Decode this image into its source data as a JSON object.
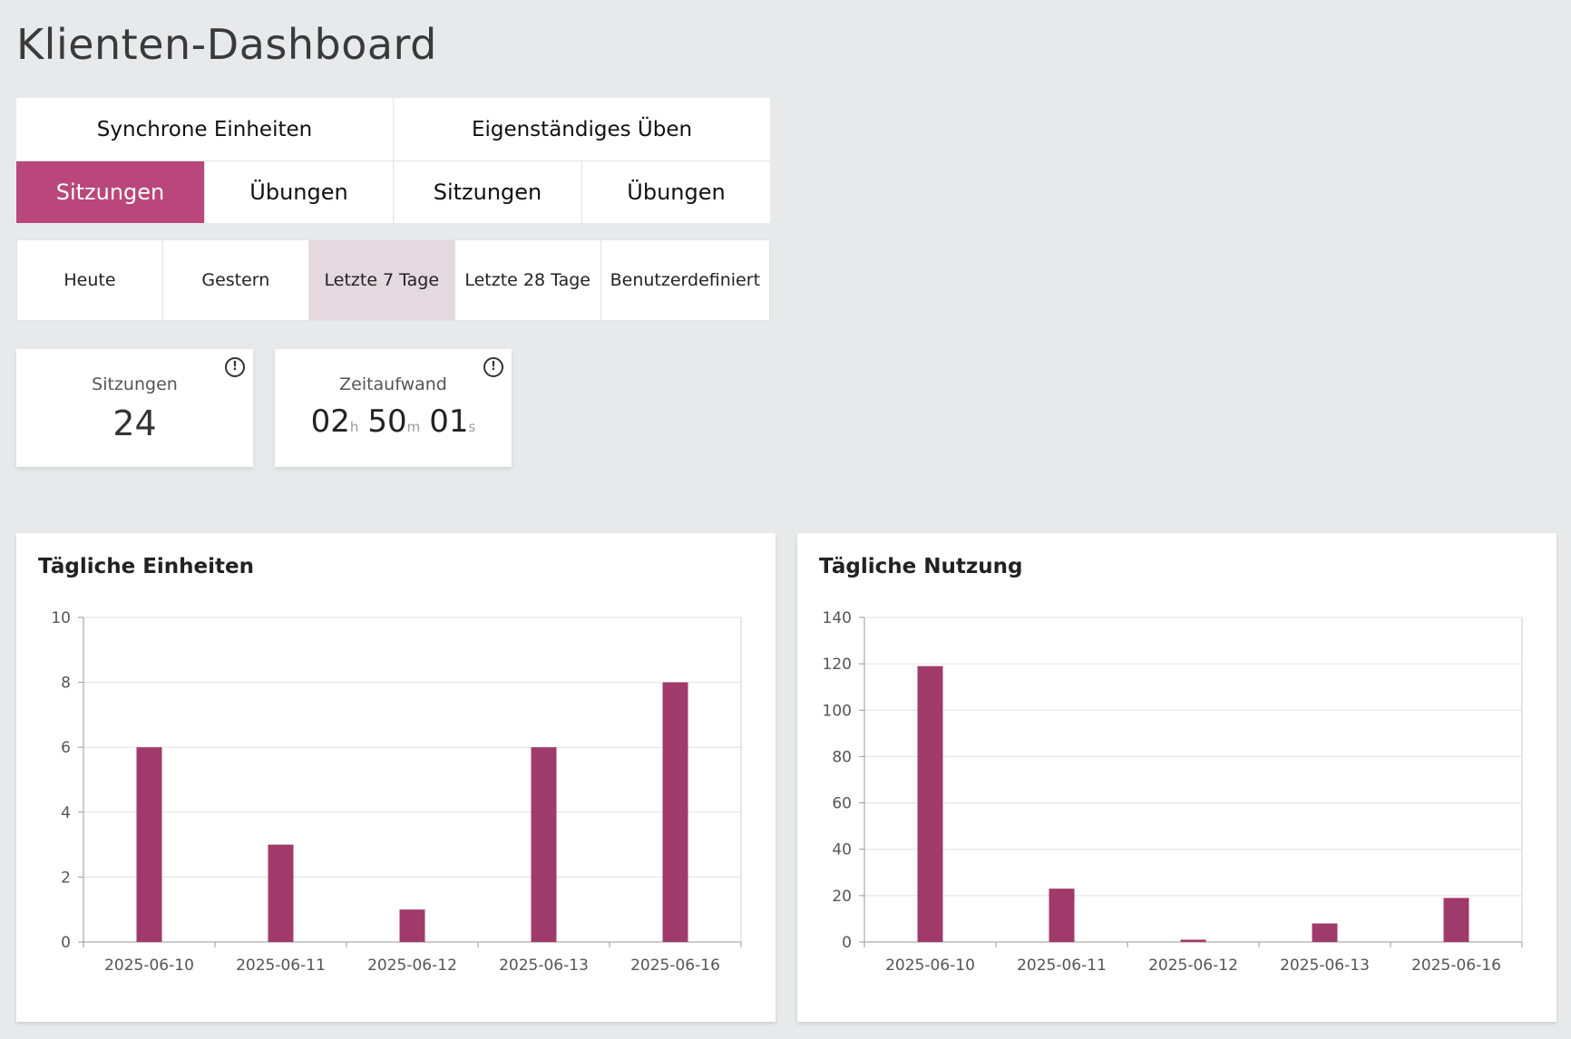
{
  "page": {
    "title": "Klienten-Dashboard"
  },
  "tabs": {
    "groups": [
      {
        "label": "Synchrone Einheiten"
      },
      {
        "label": "Eigenständiges Üben"
      }
    ],
    "subtabs": [
      {
        "label": "Sitzungen",
        "active": true
      },
      {
        "label": "Übungen",
        "active": false
      },
      {
        "label": "Sitzungen",
        "active": false
      },
      {
        "label": "Übungen",
        "active": false
      }
    ]
  },
  "periods": [
    {
      "label": "Heute",
      "active": false
    },
    {
      "label": "Gestern",
      "active": false
    },
    {
      "label": "Letzte 7 Tage",
      "active": true
    },
    {
      "label": "Letzte 28 Tage",
      "active": false
    },
    {
      "label": "Benutzerdefiniert",
      "active": false
    }
  ],
  "stats": {
    "sessions": {
      "label": "Sitzungen",
      "value": "24",
      "info_icon": "info-icon"
    },
    "time": {
      "label": "Zeitaufwand",
      "hours": "02",
      "hours_unit": "h",
      "minutes": "50",
      "minutes_unit": "m",
      "seconds": "01",
      "seconds_unit": "s",
      "info_icon": "info-icon"
    }
  },
  "colors": {
    "accent": "#b9477b",
    "bar": "#a03a6a",
    "active_period": "#e4d9de"
  },
  "chart_data": [
    {
      "type": "bar",
      "title": "Tägliche Einheiten",
      "categories": [
        "2025-06-10",
        "2025-06-11",
        "2025-06-12",
        "2025-06-13",
        "2025-06-16"
      ],
      "values": [
        6,
        3,
        1,
        6,
        8
      ],
      "ylim": [
        0,
        10
      ],
      "yticks": [
        0,
        2,
        4,
        6,
        8,
        10
      ],
      "grid": true,
      "xlabel": "",
      "ylabel": ""
    },
    {
      "type": "bar",
      "title": "Tägliche Nutzung",
      "categories": [
        "2025-06-10",
        "2025-06-11",
        "2025-06-12",
        "2025-06-13",
        "2025-06-16"
      ],
      "values": [
        119,
        23,
        1,
        8,
        19
      ],
      "ylim": [
        0,
        140
      ],
      "yticks": [
        0,
        20,
        40,
        60,
        80,
        100,
        120,
        140
      ],
      "grid": true,
      "xlabel": "",
      "ylabel": ""
    }
  ]
}
